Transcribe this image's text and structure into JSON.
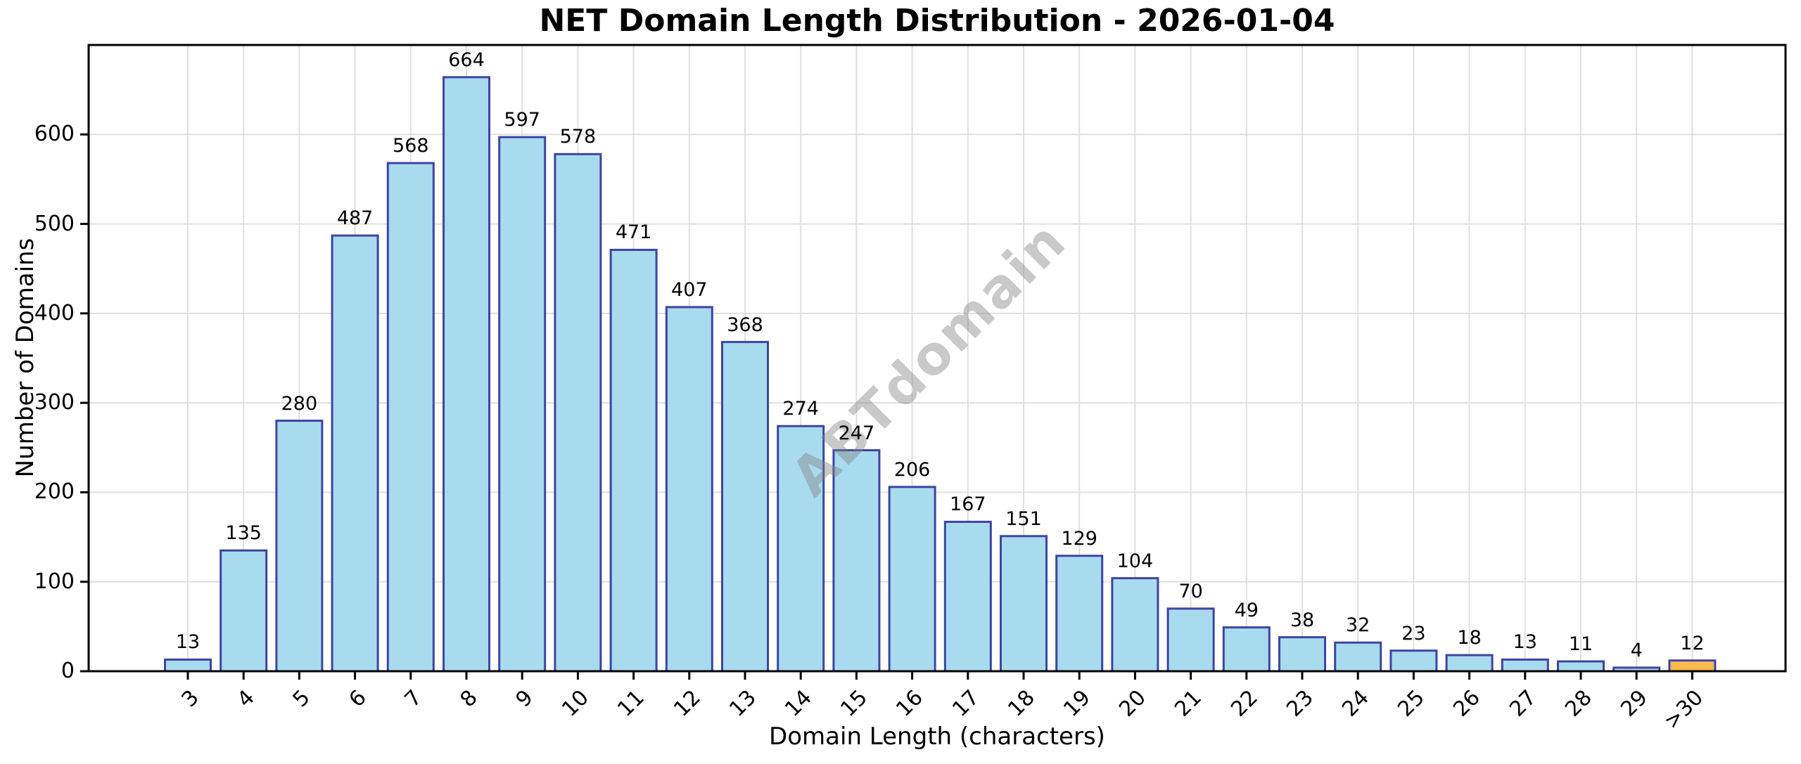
{
  "watermark": "ABTdomain",
  "chart_data": {
    "type": "bar",
    "title": "NET Domain Length Distribution - 2026-01-04",
    "xlabel": "Domain Length (characters)",
    "ylabel": "Number of Domains",
    "categories": [
      "3",
      "4",
      "5",
      "6",
      "7",
      "8",
      "9",
      "10",
      "11",
      "12",
      "13",
      "14",
      "15",
      "16",
      "17",
      "18",
      "19",
      "20",
      "21",
      "22",
      "23",
      "24",
      "25",
      "26",
      "27",
      "28",
      "29",
      ">30"
    ],
    "values": [
      13,
      135,
      280,
      487,
      568,
      664,
      597,
      578,
      471,
      407,
      368,
      274,
      247,
      206,
      167,
      151,
      129,
      104,
      70,
      49,
      38,
      32,
      23,
      18,
      13,
      11,
      4,
      12
    ],
    "value_labels_shown": true,
    "ylim": [
      0,
      700
    ],
    "yticks": [
      0,
      100,
      200,
      300,
      400,
      500,
      600
    ],
    "grid": true,
    "legend": "none",
    "xtick_rotation_deg": 45,
    "bar_color": "#A9DBEE",
    "bar_edge_color": "#3D44A5",
    "highlight_category": ">30",
    "highlight_color": "#FBBB4F"
  }
}
